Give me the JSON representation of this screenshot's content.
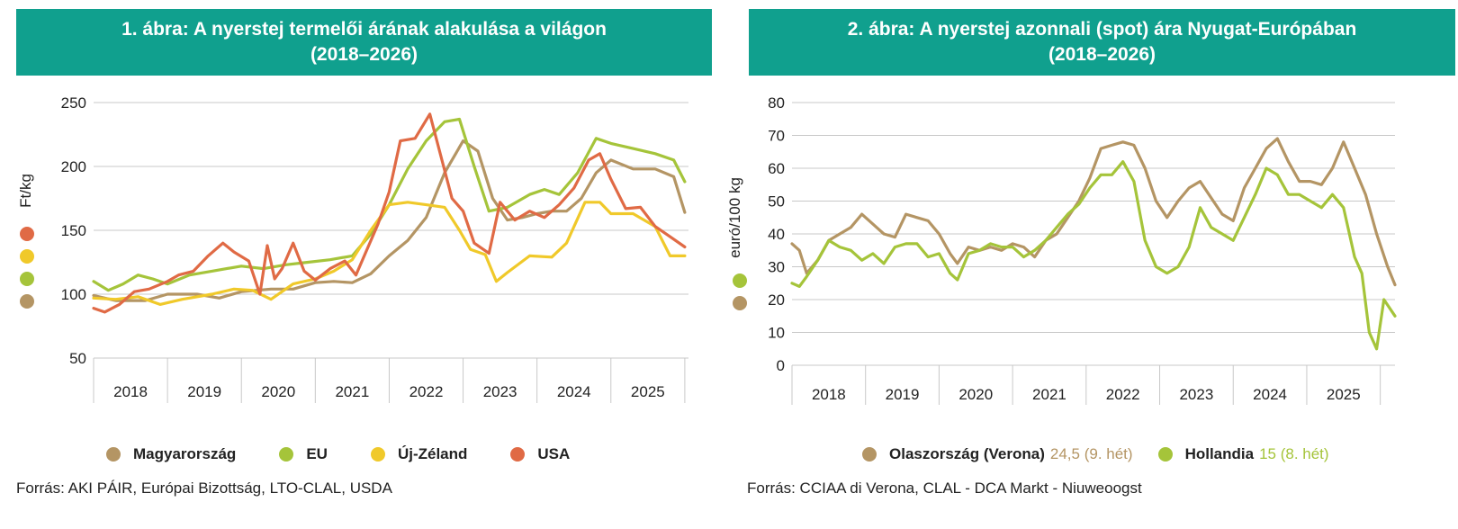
{
  "colors": {
    "teal": "#10a08e",
    "hungary": "#b49564",
    "eu": "#a5c43a",
    "nz": "#f0c92a",
    "usa": "#e06a45",
    "italy": "#b49564",
    "netherlands": "#a5c43a"
  },
  "chart1": {
    "title_line1": "1. ábra: A nyerstej termelői árának alakulása a világon",
    "title_line2": "(2018–2026)",
    "ylabel": "Ft/kg",
    "source": "Forrás: AKI PÁIR, Európai Bizottság, LTO-CLAL, USDA",
    "legend": [
      {
        "name": "Magyarország",
        "color": "#b49564"
      },
      {
        "name": "EU",
        "color": "#a5c43a"
      },
      {
        "name": "Új-Zéland",
        "color": "#f0c92a"
      },
      {
        "name": "USA",
        "color": "#e06a45"
      }
    ]
  },
  "chart2": {
    "title_line1": "2. ábra: A nyerstej azonnali (spot) ára Nyugat-Európában",
    "title_line2": "(2018–2026)",
    "ylabel": "euró/100 kg",
    "source": "Forrás: CCIAA di Verona, CLAL - DCA Markt - Niuweoogst",
    "legend": [
      {
        "name": "Olaszország (Verona)",
        "extra": "24,5 (9. hét)",
        "color": "#b49564"
      },
      {
        "name": "Hollandia",
        "extra": "15 (8. hét)",
        "color": "#a5c43a"
      }
    ]
  },
  "chart_data": [
    {
      "type": "line",
      "title": "1. ábra: A nyerstej termelői árának alakulása a világon (2018–2026)",
      "ylabel": "Ft/kg",
      "xlabel": "",
      "categories": [
        "2018",
        "2019",
        "2020",
        "2021",
        "2022",
        "2023",
        "2024",
        "2025"
      ],
      "x_range": [
        2018.0,
        2026.05
      ],
      "ylim": [
        50,
        250
      ],
      "yticks": [
        50,
        100,
        150,
        200,
        250
      ],
      "grid": true,
      "legend_position": "bottom",
      "series": [
        {
          "name": "Magyarország",
          "color": "#b49564",
          "x": [
            2018.0,
            2018.3,
            2018.7,
            2019.0,
            2019.4,
            2019.7,
            2020.0,
            2020.4,
            2020.7,
            2021.0,
            2021.25,
            2021.5,
            2021.75,
            2022.0,
            2022.25,
            2022.5,
            2022.75,
            2023.0,
            2023.2,
            2023.4,
            2023.6,
            2023.8,
            2024.0,
            2024.2,
            2024.4,
            2024.6,
            2024.8,
            2025.0,
            2025.3,
            2025.6,
            2025.85,
            2026.0
          ],
          "values": [
            99,
            95,
            95,
            100,
            100,
            97,
            102,
            104,
            104,
            109,
            110,
            109,
            116,
            130,
            142,
            160,
            195,
            220,
            212,
            175,
            158,
            160,
            163,
            165,
            165,
            175,
            195,
            205,
            198,
            198,
            192,
            164
          ]
        },
        {
          "name": "EU",
          "color": "#a5c43a",
          "x": [
            2018.0,
            2018.2,
            2018.4,
            2018.6,
            2018.8,
            2019.0,
            2019.3,
            2019.6,
            2020.0,
            2020.3,
            2020.6,
            2020.9,
            2021.2,
            2021.5,
            2021.75,
            2022.0,
            2022.25,
            2022.5,
            2022.75,
            2022.95,
            2023.15,
            2023.35,
            2023.6,
            2023.9,
            2024.1,
            2024.3,
            2024.55,
            2024.8,
            2025.0,
            2025.3,
            2025.6,
            2025.85,
            2026.0
          ],
          "values": [
            110,
            103,
            108,
            115,
            112,
            108,
            115,
            118,
            122,
            120,
            123,
            125,
            127,
            130,
            147,
            170,
            198,
            220,
            235,
            237,
            200,
            165,
            168,
            178,
            182,
            178,
            195,
            222,
            218,
            214,
            210,
            205,
            188
          ]
        },
        {
          "name": "Új-Zéland",
          "color": "#f0c92a",
          "x": [
            2018.0,
            2018.3,
            2018.6,
            2018.9,
            2019.2,
            2019.6,
            2019.9,
            2020.15,
            2020.4,
            2020.7,
            2021.0,
            2021.25,
            2021.5,
            2021.75,
            2022.0,
            2022.25,
            2022.5,
            2022.75,
            2022.95,
            2023.1,
            2023.3,
            2023.45,
            2023.6,
            2023.9,
            2024.2,
            2024.4,
            2024.65,
            2024.85,
            2025.0,
            2025.3,
            2025.6,
            2025.8,
            2026.0
          ],
          "values": [
            97,
            96,
            98,
            92,
            96,
            100,
            104,
            103,
            96,
            108,
            112,
            118,
            127,
            150,
            170,
            172,
            170,
            168,
            150,
            135,
            131,
            110,
            117,
            130,
            129,
            140,
            172,
            172,
            163,
            163,
            153,
            130,
            130
          ]
        },
        {
          "name": "USA",
          "color": "#e06a45",
          "x": [
            2018.0,
            2018.15,
            2018.35,
            2018.55,
            2018.75,
            2019.0,
            2019.15,
            2019.35,
            2019.55,
            2019.75,
            2019.9,
            2020.1,
            2020.25,
            2020.35,
            2020.45,
            2020.55,
            2020.7,
            2020.85,
            2021.0,
            2021.2,
            2021.4,
            2021.55,
            2021.7,
            2021.85,
            2022.0,
            2022.15,
            2022.35,
            2022.55,
            2022.7,
            2022.85,
            2023.0,
            2023.15,
            2023.35,
            2023.5,
            2023.7,
            2023.9,
            2024.1,
            2024.3,
            2024.5,
            2024.7,
            2024.85,
            2025.0,
            2025.2,
            2025.4,
            2025.6,
            2025.8,
            2026.0
          ],
          "values": [
            89,
            86,
            92,
            102,
            104,
            110,
            115,
            118,
            130,
            140,
            133,
            126,
            100,
            138,
            112,
            120,
            140,
            118,
            111,
            120,
            126,
            115,
            135,
            155,
            180,
            220,
            222,
            241,
            208,
            175,
            165,
            140,
            132,
            172,
            158,
            165,
            160,
            170,
            183,
            205,
            210,
            190,
            167,
            168,
            153,
            145,
            137
          ]
        }
      ]
    },
    {
      "type": "line",
      "title": "2. ábra: A nyerstej azonnali (spot) ára Nyugat-Európában (2018–2026)",
      "ylabel": "euró/100 kg",
      "xlabel": "",
      "categories": [
        "2018",
        "2019",
        "2020",
        "2021",
        "2022",
        "2023",
        "2024",
        "2025"
      ],
      "x_range": [
        2018.0,
        2026.2
      ],
      "ylim": [
        0,
        80
      ],
      "yticks": [
        0,
        10,
        20,
        30,
        40,
        50,
        60,
        70,
        80
      ],
      "grid": true,
      "legend_position": "bottom",
      "series": [
        {
          "name": "Olaszország (Verona)",
          "color": "#b49564",
          "x": [
            2018.0,
            2018.1,
            2018.2,
            2018.35,
            2018.5,
            2018.65,
            2018.8,
            2018.95,
            2019.1,
            2019.25,
            2019.4,
            2019.55,
            2019.7,
            2019.85,
            2020.0,
            2020.15,
            2020.25,
            2020.4,
            2020.55,
            2020.7,
            2020.85,
            2021.0,
            2021.15,
            2021.3,
            2021.45,
            2021.6,
            2021.75,
            2021.9,
            2022.05,
            2022.2,
            2022.35,
            2022.5,
            2022.65,
            2022.8,
            2022.95,
            2023.1,
            2023.25,
            2023.4,
            2023.55,
            2023.7,
            2023.85,
            2024.0,
            2024.15,
            2024.3,
            2024.45,
            2024.6,
            2024.75,
            2024.9,
            2025.05,
            2025.2,
            2025.35,
            2025.5,
            2025.65,
            2025.8,
            2025.95,
            2026.1,
            2026.2
          ],
          "values": [
            37,
            35,
            28,
            32,
            38,
            40,
            42,
            46,
            43,
            40,
            39,
            46,
            45,
            44,
            40,
            34,
            31,
            36,
            35,
            36,
            35,
            37,
            36,
            33,
            38,
            40,
            45,
            50,
            57,
            66,
            67,
            68,
            67,
            60,
            50,
            45,
            50,
            54,
            56,
            51,
            46,
            44,
            54,
            60,
            66,
            69,
            62,
            56,
            56,
            55,
            60,
            68,
            60,
            52,
            40,
            30,
            24.5
          ]
        },
        {
          "name": "Hollandia",
          "color": "#a5c43a",
          "x": [
            2018.0,
            2018.1,
            2018.2,
            2018.35,
            2018.5,
            2018.65,
            2018.8,
            2018.95,
            2019.1,
            2019.25,
            2019.4,
            2019.55,
            2019.7,
            2019.85,
            2020.0,
            2020.15,
            2020.25,
            2020.4,
            2020.55,
            2020.7,
            2020.85,
            2021.0,
            2021.15,
            2021.3,
            2021.45,
            2021.6,
            2021.75,
            2021.9,
            2022.05,
            2022.2,
            2022.35,
            2022.5,
            2022.65,
            2022.8,
            2022.95,
            2023.1,
            2023.25,
            2023.4,
            2023.55,
            2023.7,
            2023.85,
            2024.0,
            2024.15,
            2024.3,
            2024.45,
            2024.6,
            2024.75,
            2024.9,
            2025.05,
            2025.2,
            2025.35,
            2025.5,
            2025.65,
            2025.75,
            2025.85,
            2025.95,
            2026.05,
            2026.2
          ],
          "values": [
            25,
            24,
            27,
            32,
            38,
            36,
            35,
            32,
            34,
            31,
            36,
            37,
            37,
            33,
            34,
            28,
            26,
            34,
            35,
            37,
            36,
            36,
            33,
            35,
            38,
            42,
            46,
            49,
            54,
            58,
            58,
            62,
            56,
            38,
            30,
            28,
            30,
            36,
            48,
            42,
            40,
            38,
            45,
            52,
            60,
            58,
            52,
            52,
            50,
            48,
            52,
            48,
            33,
            28,
            10,
            5,
            20,
            15
          ]
        }
      ]
    }
  ]
}
